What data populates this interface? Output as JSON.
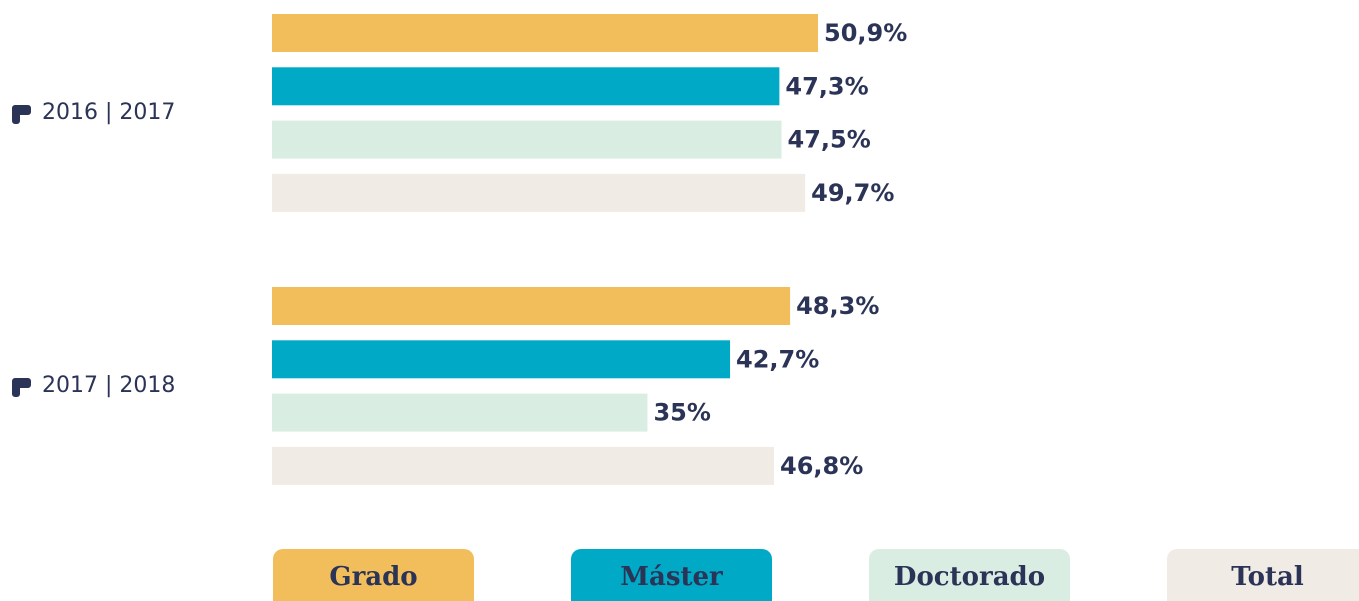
{
  "chart_data": {
    "type": "bar",
    "categories": [
      "2016 | 2017",
      "2017 | 2018"
    ],
    "series": [
      {
        "name": "Grado",
        "color": "#f2be5c",
        "values": [
          50.9,
          48.3
        ],
        "value_labels": [
          "50,9%",
          "48,3%"
        ]
      },
      {
        "name": "Máster",
        "color": "#00a9c6",
        "values": [
          47.3,
          42.7
        ],
        "value_labels": [
          "47,3%",
          "42,7%"
        ]
      },
      {
        "name": "Doctorado",
        "color": "#d9ede3",
        "values": [
          47.5,
          35
        ],
        "value_labels": [
          "47,5%",
          "35%"
        ]
      },
      {
        "name": "Total",
        "color": "#f0ebe4",
        "values": [
          49.7,
          46.8
        ],
        "value_labels": [
          "49,7%",
          "46,8%"
        ]
      }
    ]
  }
}
